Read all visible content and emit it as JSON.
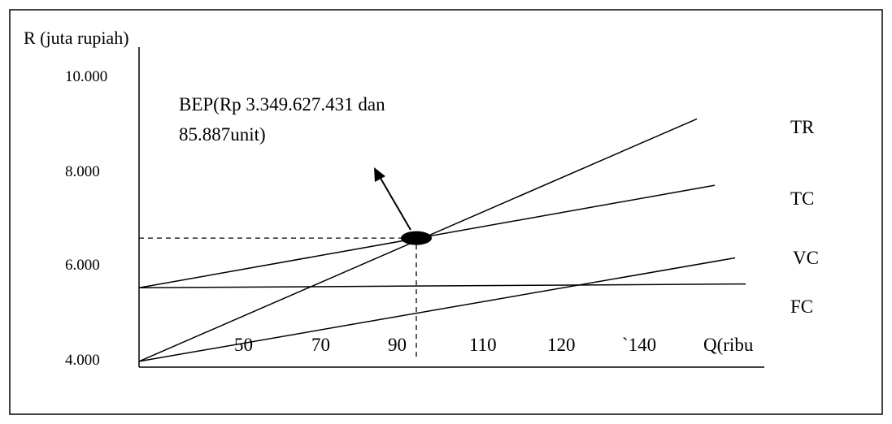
{
  "chart_data": {
    "type": "line",
    "ylabel": "R (juta rupiah)",
    "xlabel": "Q(ribu",
    "y_ticks": [
      "10.000",
      "8.000",
      "6.000",
      "4.000"
    ],
    "y_tick_values": [
      10000,
      8000,
      6000,
      4000
    ],
    "x_ticks": [
      "50",
      "70",
      "90",
      "110",
      "120",
      "`140"
    ],
    "ylim": [
      4000,
      10000
    ],
    "annotation": {
      "line1": "BEP(Rp 3.349.627.431 dan",
      "line2": "85.887unit)"
    },
    "bep_point": {
      "label_y": 6550
    },
    "series": [
      {
        "name": "TR",
        "start": 3950,
        "end": 9070
      },
      {
        "name": "TC",
        "start": 5500,
        "end": 7670
      },
      {
        "name": "VC",
        "start": 3950,
        "end": 6130
      },
      {
        "name": "FC",
        "start": 5500,
        "end": 5580
      }
    ]
  }
}
